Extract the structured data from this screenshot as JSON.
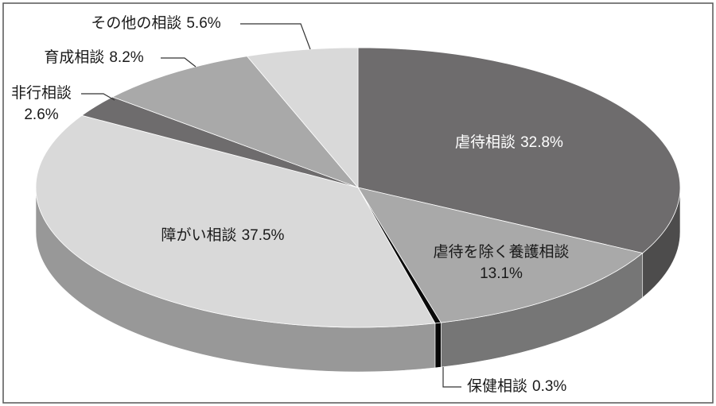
{
  "chart_data": {
    "type": "pie3d",
    "categories": [
      "虐待相談",
      "虐待を除く養護相談",
      "保健相談",
      "障がい相談",
      "非行相談",
      "育成相談",
      "その他の相談"
    ],
    "values": [
      32.8,
      13.1,
      0.3,
      37.5,
      2.6,
      8.2,
      5.6
    ],
    "value_labels": [
      "32.8%",
      "13.1%",
      "0.3%",
      "37.5%",
      "2.6%",
      "8.2%",
      "5.6%"
    ],
    "colors": [
      "#6e6c6d",
      "#a9a9a9",
      "#0a0a0a",
      "#d9d9d9",
      "#6e6c6d",
      "#a9a9a9",
      "#d9d9d9"
    ]
  }
}
